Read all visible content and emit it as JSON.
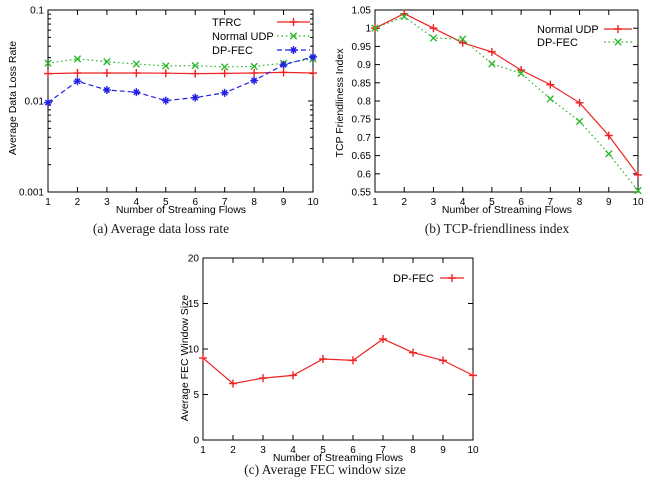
{
  "chart_data": [
    {
      "id": "a",
      "type": "line",
      "caption": "(a) Average data loss rate",
      "xlabel": "Number of Streaming Flows",
      "ylabel": "Average Data Loss Rate",
      "x": [
        1,
        2,
        3,
        4,
        5,
        6,
        7,
        8,
        9,
        10
      ],
      "x_tick_labels": [
        "1",
        "2",
        "3",
        "4",
        "5",
        "6",
        "7",
        "8",
        "9",
        "10"
      ],
      "xlim": [
        1,
        10
      ],
      "y_scale": "log",
      "ylim": [
        0.001,
        0.1
      ],
      "y_tick_values": [
        0.1,
        0.01,
        0.001
      ],
      "y_tick_labels": [
        "0.1",
        "0.01",
        "0.001"
      ],
      "grid": false,
      "legend_position": "top-right-inside",
      "series": [
        {
          "name": "TFRC",
          "color": "#ee2222",
          "line": "solid",
          "marker": "plus",
          "values": [
            0.02,
            0.0203,
            0.0203,
            0.0203,
            0.0202,
            0.02,
            0.0201,
            0.0203,
            0.0206,
            0.0203
          ]
        },
        {
          "name": "Normal UDP",
          "color": "#2eb82e",
          "line": "dotted",
          "marker": "cross",
          "values": [
            0.026,
            0.029,
            0.027,
            0.0255,
            0.0243,
            0.0245,
            0.0237,
            0.024,
            0.026,
            0.029
          ]
        },
        {
          "name": "DP-FEC",
          "color": "#2020e6",
          "line": "dashed",
          "marker": "asterisk",
          "values": [
            0.0096,
            0.0165,
            0.0132,
            0.0125,
            0.0101,
            0.0109,
            0.0123,
            0.0168,
            0.025,
            0.0305
          ]
        }
      ]
    },
    {
      "id": "b",
      "type": "line",
      "caption": "(b) TCP-friendliness index",
      "xlabel": "Number of Streaming Flows",
      "ylabel": "TCP Friendliness Index",
      "x": [
        1,
        2,
        3,
        4,
        5,
        6,
        7,
        8,
        9,
        10
      ],
      "x_tick_labels": [
        "1",
        "2",
        "3",
        "4",
        "5",
        "6",
        "7",
        "8",
        "9",
        "10"
      ],
      "xlim": [
        1,
        10
      ],
      "y_scale": "linear",
      "ylim": [
        0.55,
        1.05
      ],
      "y_tick_values": [
        1.05,
        1,
        0.95,
        0.9,
        0.85,
        0.8,
        0.75,
        0.7,
        0.65,
        0.6,
        0.55
      ],
      "y_tick_labels": [
        "1.05",
        "1",
        "0.95",
        "0.9",
        "0.85",
        "0.8",
        "0.75",
        "0.7",
        "0.65",
        "0.6",
        "0.55"
      ],
      "grid": false,
      "legend_position": "top-right-inside",
      "series": [
        {
          "name": "Normal UDP",
          "color": "#ee2222",
          "line": "solid",
          "marker": "plus",
          "values": [
            1.0,
            1.04,
            1.0,
            0.96,
            0.935,
            0.885,
            0.845,
            0.795,
            0.705,
            0.597
          ]
        },
        {
          "name": "DP-FEC",
          "color": "#2eb82e",
          "line": "dotted",
          "marker": "cross",
          "values": [
            1.0,
            1.032,
            0.973,
            0.97,
            0.902,
            0.876,
            0.806,
            0.744,
            0.655,
            0.554
          ]
        }
      ]
    },
    {
      "id": "c",
      "type": "line",
      "caption": "(c) Average FEC window size",
      "xlabel": "Number of Streaming Flows",
      "ylabel": "Average FEC Window Size",
      "x": [
        1,
        2,
        3,
        4,
        5,
        6,
        7,
        8,
        9,
        10
      ],
      "x_tick_labels": [
        "1",
        "2",
        "3",
        "4",
        "5",
        "6",
        "7",
        "8",
        "9",
        "10"
      ],
      "xlim": [
        1,
        10
      ],
      "y_scale": "linear",
      "ylim": [
        0,
        20
      ],
      "y_tick_values": [
        0,
        5,
        10,
        15,
        20
      ],
      "y_tick_labels": [
        "0",
        "5",
        "10",
        "15",
        "20"
      ],
      "grid": false,
      "legend_position": "top-right-inside",
      "series": [
        {
          "name": "DP-FEC",
          "color": "#ee2222",
          "line": "solid",
          "marker": "plus",
          "values": [
            9.0,
            6.2,
            6.8,
            7.1,
            8.9,
            8.75,
            11.1,
            9.6,
            8.75,
            7.1
          ]
        }
      ]
    }
  ]
}
